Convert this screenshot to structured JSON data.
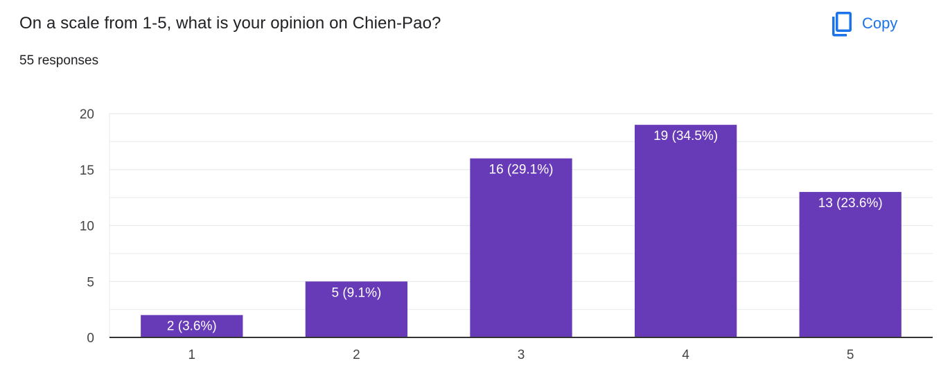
{
  "header": {
    "question": "On a scale from 1-5, what is your opinion on Chien-Pao?",
    "responses": "55 responses",
    "copy_label": "Copy",
    "copy_icon": "copy-icon"
  },
  "colors": {
    "bar": "#673ab7",
    "accent": "#1a73e8",
    "grid": "#e8eaed",
    "axis": "#333333",
    "text": "#444444"
  },
  "chart_data": {
    "type": "bar",
    "categories": [
      "1",
      "2",
      "3",
      "4",
      "5"
    ],
    "values": [
      2,
      5,
      16,
      19,
      13
    ],
    "data_labels": [
      "2 (3.6%)",
      "5 (9.1%)",
      "16 (29.1%)",
      "19 (34.5%)",
      "13 (23.6%)"
    ],
    "y_ticks": [
      "0",
      "5",
      "10",
      "15",
      "20"
    ],
    "ylim": [
      0,
      20
    ],
    "grid": true,
    "legend": "none"
  }
}
